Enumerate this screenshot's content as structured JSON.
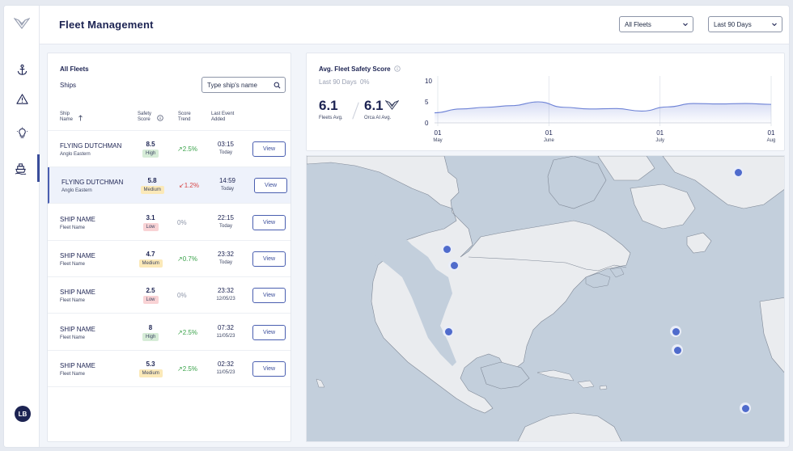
{
  "header": {
    "title": "Fleet Management",
    "fleet_select": "All Fleets",
    "period_select": "Last 90 Days"
  },
  "sidebar": {
    "items": [
      {
        "icon": "anchor-icon"
      },
      {
        "icon": "warning-icon"
      },
      {
        "icon": "lightbulb-icon"
      },
      {
        "icon": "ship-icon",
        "active": true
      }
    ],
    "avatar_initials": "LB"
  },
  "ships": {
    "title": "All Fleets",
    "subtitle": "Ships",
    "search_placeholder": "Type ship's name",
    "columns": {
      "name": "Ship Name",
      "score": "Safety Score",
      "trend": "Score Trend",
      "event": "Last Event Added"
    },
    "view_label": "View",
    "rows": [
      {
        "name": "FLYING DUTCHMAN",
        "fleet": "Anglo Eastern",
        "score": "8.5",
        "level": "High",
        "trend": "↗2.5%",
        "time": "03:15",
        "date": "Today"
      },
      {
        "name": "FLYING DUTCHMAN",
        "fleet": "Anglo Eastern",
        "score": "5.8",
        "level": "Medium",
        "trend": "↙1.2%",
        "time": "14:59",
        "date": "Today"
      },
      {
        "name": "SHIP NAME",
        "fleet": "Fleet Name",
        "score": "3.1",
        "level": "Low",
        "trend": "0%",
        "time": "22:15",
        "date": "Today"
      },
      {
        "name": "SHIP NAME",
        "fleet": "Fleet Name",
        "score": "4.7",
        "level": "Medium",
        "trend": "↗0.7%",
        "time": "23:32",
        "date": "Today"
      },
      {
        "name": "SHIP NAME",
        "fleet": "Fleet Name",
        "score": "2.5",
        "level": "Low",
        "trend": "0%",
        "time": "23:32",
        "date": "12/05/23"
      },
      {
        "name": "SHIP NAME",
        "fleet": "Fleet Name",
        "score": "8",
        "level": "High",
        "trend": "↗2.5%",
        "time": "07:32",
        "date": "11/05/23"
      },
      {
        "name": "SHIP NAME",
        "fleet": "Fleet Name",
        "score": "5.3",
        "level": "Medium",
        "trend": "↗2.5%",
        "time": "02:32",
        "date": "11/05/23"
      }
    ]
  },
  "score": {
    "title": "Avg. Fleet Safety Score",
    "period": "Last 90 Days",
    "change": "0%",
    "fleet_avg": "6.1",
    "fleet_avg_label": "Fleets Avg.",
    "orca_avg": "6.1",
    "orca_avg_label": "Orca AI Avg."
  },
  "chart_data": {
    "type": "line",
    "yticks": [
      "10",
      "5",
      "0"
    ],
    "ylim": [
      0,
      10
    ],
    "xticks": [
      {
        "day": "01",
        "month": "May"
      },
      {
        "day": "01",
        "month": "June"
      },
      {
        "day": "01",
        "month": "July"
      },
      {
        "day": "01",
        "month": "Aug"
      }
    ],
    "series": [
      {
        "values": [
          2.4,
          3.3,
          3.7,
          4.1,
          5.0,
          3.7,
          3.3,
          3.4,
          2.8,
          3.8,
          4.6,
          4.5,
          4.6,
          4.4
        ]
      }
    ]
  },
  "map": {
    "markers": 8
  }
}
